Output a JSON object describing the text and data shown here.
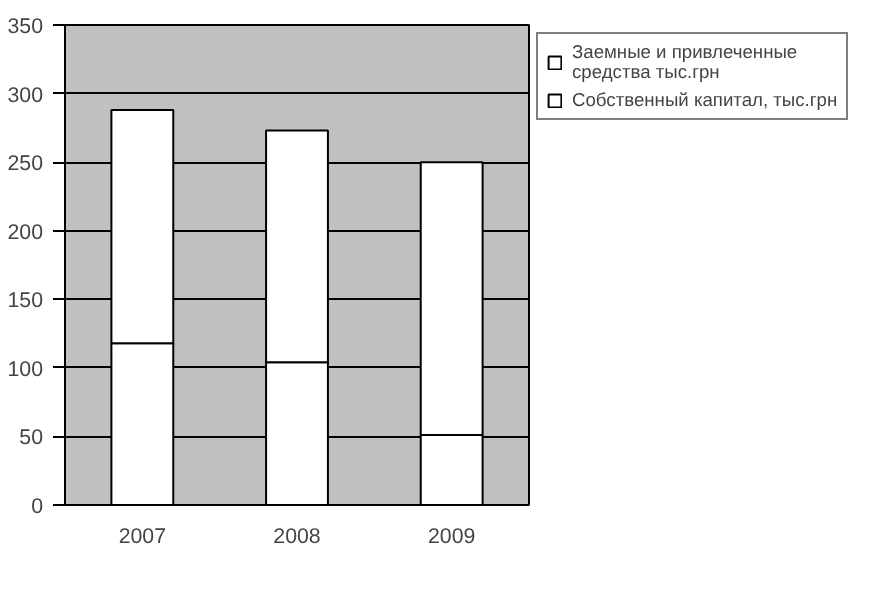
{
  "chart_data": {
    "type": "bar",
    "stacked": true,
    "categories": [
      "2007",
      "2008",
      "2009"
    ],
    "series": [
      {
        "name": "Собственный капитал, тыс.грн",
        "color": "#ffffff",
        "values": [
          118,
          104,
          51
        ]
      },
      {
        "name": "Заемные и привлеченные средства тыс.грн",
        "color": "#ffffff",
        "values": [
          170,
          169,
          199
        ]
      }
    ],
    "ylim": [
      0,
      350
    ],
    "yticks": [
      0,
      50,
      100,
      150,
      200,
      250,
      300,
      350
    ],
    "grid": "y",
    "legend": "right"
  }
}
